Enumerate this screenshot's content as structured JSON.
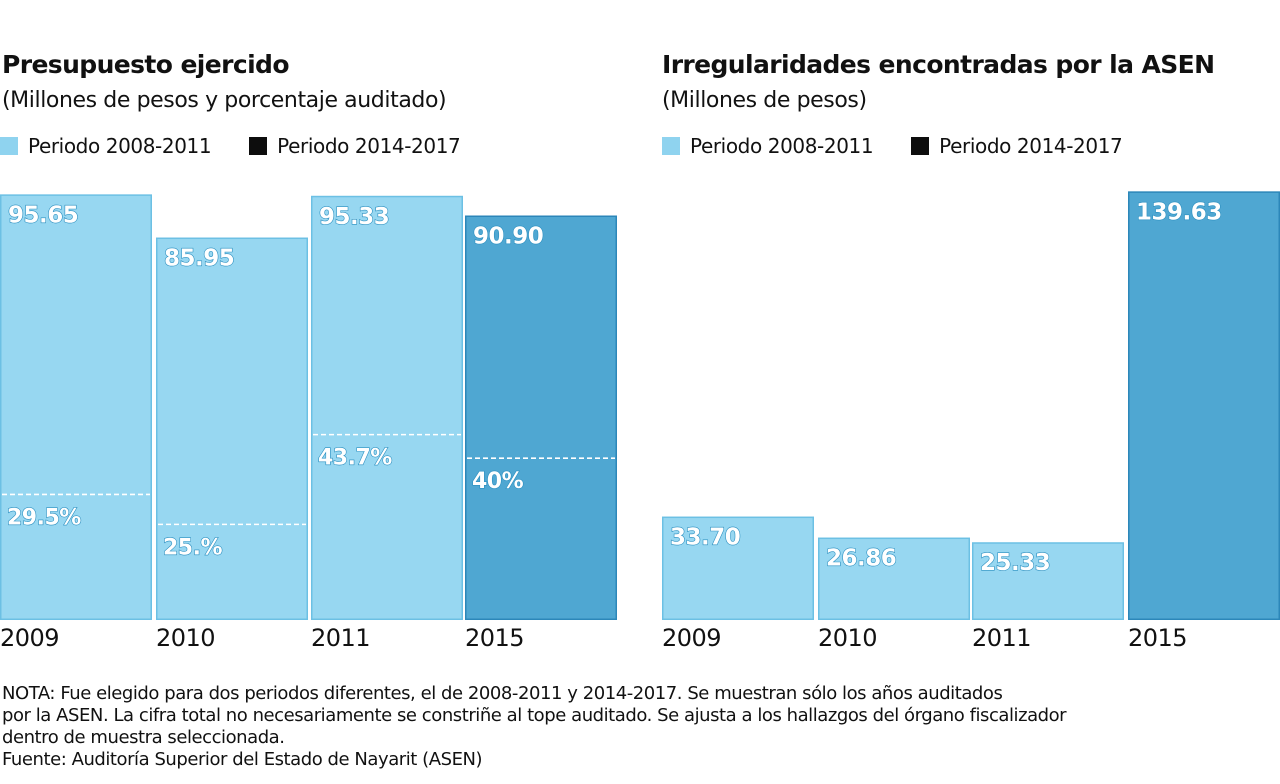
{
  "colors": {
    "period_1": "#97d7f1",
    "period_1_edge": "#6cc0e4",
    "period_2": "#4fa7d2",
    "period_2_edge": "#2c87b9",
    "legend_period_2": "#0d0d0d"
  },
  "legend": {
    "period_1": "Periodo 2008-2011",
    "period_2": "Periodo 2014-2017"
  },
  "chart_data": [
    {
      "type": "bar",
      "title": "Presupuesto ejercido",
      "subtitle": "(Millones de pesos y porcentaje auditado)",
      "categories": [
        "2009",
        "2010",
        "2011",
        "2015"
      ],
      "series": [
        {
          "name": "Presupuesto ejercido",
          "values": [
            95.65,
            85.95,
            95.33,
            90.9
          ]
        },
        {
          "name": "Porcentaje auditado",
          "values": [
            29.5,
            25,
            43.7,
            40
          ]
        }
      ],
      "value_labels": [
        "95.65",
        "85.95",
        "95.33",
        "90.90"
      ],
      "percent_labels": [
        "29.5%",
        "25.%",
        "43.7%",
        "40%"
      ],
      "periods": [
        "period_1",
        "period_1",
        "period_1",
        "period_2"
      ],
      "legend": [
        "Periodo 2008-2011",
        "Periodo 2014-2017"
      ],
      "legend_position": "top-left",
      "grid": false,
      "xlabel": "",
      "ylabel": ""
    },
    {
      "type": "bar",
      "title": "Irregularidades encontradas por la ASEN",
      "subtitle": "(Millones de pesos)",
      "categories": [
        "2009",
        "2010",
        "2011",
        "2015"
      ],
      "series": [
        {
          "name": "Irregularidades",
          "values": [
            33.7,
            26.86,
            25.33,
            139.63
          ]
        }
      ],
      "value_labels": [
        "33.70",
        "26.86",
        "25.33",
        "139.63"
      ],
      "periods": [
        "period_1",
        "period_1",
        "period_1",
        "period_2"
      ],
      "legend": [
        "Periodo 2008-2011",
        "Periodo 2014-2017"
      ],
      "legend_position": "top-left",
      "grid": false,
      "xlabel": "",
      "ylabel": ""
    }
  ],
  "footer": {
    "note": "NOTA: Fue elegido para dos periodos diferentes, el de 2008-2011 y 2014-2017. Se muestran sólo los años auditados por la ASEN. La cifra total no necesariamente se constriñe al tope auditado. Se ajusta a los hallazgos del órgano fiscalizador dentro de muestra seleccionada.",
    "note_lines": [
      "NOTA: Fue elegido para dos periodos diferentes, el de 2008-2011 y 2014-2017. Se muestran sólo los años auditados",
      "por la ASEN. La cifra total no necesariamente se constriñe al tope auditado. Se ajusta a los hallazgos del órgano fiscalizador",
      "dentro de muestra seleccionada."
    ],
    "source": "Fuente: Auditoría Superior del Estado de Nayarit (ASEN)"
  }
}
